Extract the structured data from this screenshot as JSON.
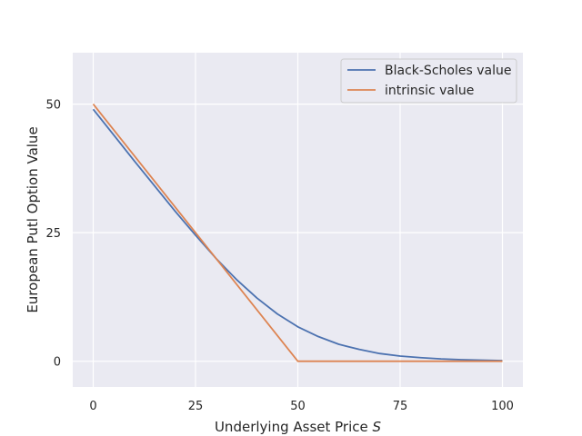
{
  "chart_data": {
    "type": "line",
    "xlabel_text": "Underlying Asset Price ",
    "xlabel_symbol": "S",
    "ylabel": "European Putl Option Value",
    "xlim": [
      -5,
      105
    ],
    "ylim": [
      -5,
      60
    ],
    "xticks": [
      0,
      25,
      50,
      75,
      100
    ],
    "yticks": [
      0,
      25,
      50
    ],
    "grid": true,
    "legend_position": "top-right",
    "series": [
      {
        "name": "Black-Scholes value",
        "color": "#4c72b0",
        "x": [
          0,
          5,
          10,
          15,
          20,
          25,
          30,
          35,
          40,
          45,
          50,
          55,
          60,
          65,
          70,
          75,
          80,
          85,
          90,
          95,
          100
        ],
        "y": [
          49.0,
          44.0,
          39.0,
          34.1,
          29.2,
          24.5,
          20.0,
          15.9,
          12.3,
          9.2,
          6.7,
          4.8,
          3.3,
          2.3,
          1.5,
          1.0,
          0.7,
          0.45,
          0.3,
          0.2,
          0.12
        ]
      },
      {
        "name": "intrinsic value",
        "color": "#dd8452",
        "x": [
          0,
          50,
          100
        ],
        "y": [
          50,
          0,
          0
        ]
      }
    ]
  }
}
